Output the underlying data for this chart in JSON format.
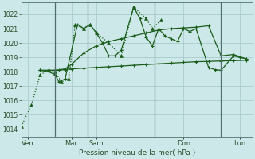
{
  "bg_color": "#cce8e8",
  "grid_color": "#aacccc",
  "line_color": "#1a5c1a",
  "xlabel": "Pression niveau de la mer( hPa )",
  "ylim": [
    1013.5,
    1022.8
  ],
  "yticks": [
    1014,
    1015,
    1016,
    1017,
    1018,
    1019,
    1020,
    1021,
    1022
  ],
  "vlines_x": [
    2.67,
    5.33,
    10.67,
    16.0
  ],
  "xlim": [
    0,
    18.5
  ],
  "xtick_positions": [
    0.5,
    4.0,
    6.0,
    13.0,
    17.5
  ],
  "xtick_labels": [
    "Ven",
    "Mar",
    "Sam",
    "Dim",
    "Lun"
  ],
  "series_dotted_x": [
    0,
    0.8,
    1.5,
    2.2,
    2.7,
    3.2,
    3.8,
    4.3,
    5.0,
    5.5,
    6.0,
    7.0,
    8.0,
    9.0,
    10.0,
    10.5,
    11.2
  ],
  "series_dotted_y": [
    1014.2,
    1015.7,
    1017.8,
    1018.1,
    1018.0,
    1017.3,
    1017.5,
    1021.3,
    1021.0,
    1021.3,
    1020.7,
    1020.0,
    1019.1,
    1022.5,
    1021.7,
    1021.0,
    1021.6
  ],
  "series_flat_x": [
    1.5,
    2.2,
    2.7,
    3.0,
    3.5,
    4.0,
    5.0,
    6.0,
    7.0,
    8.0,
    9.0,
    10.0,
    11.0,
    12.0,
    13.0,
    14.0,
    15.0,
    16.0,
    17.0,
    18.0
  ],
  "series_flat_y": [
    1018.1,
    1018.1,
    1018.1,
    1018.1,
    1018.15,
    1018.2,
    1018.25,
    1018.3,
    1018.35,
    1018.4,
    1018.45,
    1018.5,
    1018.55,
    1018.6,
    1018.65,
    1018.7,
    1018.72,
    1018.75,
    1018.77,
    1018.8
  ],
  "series_rise_x": [
    1.5,
    2.2,
    2.7,
    3.5,
    4.0,
    5.0,
    6.0,
    7.0,
    8.0,
    9.0,
    10.0,
    11.0,
    12.0,
    13.0,
    14.0,
    15.0,
    16.0,
    17.0,
    18.0
  ],
  "series_rise_y": [
    1018.1,
    1018.1,
    1018.1,
    1018.2,
    1018.5,
    1019.3,
    1019.8,
    1020.1,
    1020.3,
    1020.5,
    1020.7,
    1020.9,
    1021.0,
    1021.05,
    1021.1,
    1021.2,
    1019.1,
    1019.2,
    1018.9
  ],
  "series_volatile_x": [
    1.5,
    2.2,
    2.7,
    3.0,
    3.5,
    4.5,
    5.0,
    5.5,
    6.0,
    6.5,
    7.0,
    7.5,
    8.0,
    9.0,
    9.5,
    10.0,
    10.5,
    11.0,
    11.5,
    12.0,
    12.5,
    13.0,
    13.5,
    14.0,
    15.0,
    15.5,
    16.0,
    17.0,
    17.5,
    18.0
  ],
  "series_volatile_y": [
    1018.1,
    1018.0,
    1017.8,
    1017.3,
    1017.5,
    1021.3,
    1021.0,
    1021.3,
    1020.7,
    1020.0,
    1019.1,
    1019.1,
    1019.5,
    1022.5,
    1021.7,
    1020.4,
    1019.8,
    1021.0,
    1020.5,
    1020.3,
    1020.1,
    1021.0,
    1020.8,
    1021.0,
    1018.3,
    1018.15,
    1018.1,
    1019.1,
    1019.0,
    1018.9
  ]
}
